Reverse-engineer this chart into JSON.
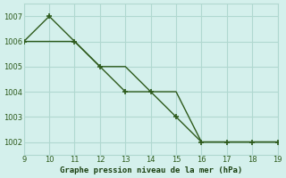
{
  "x": [
    9,
    10,
    11,
    12,
    13,
    14,
    15,
    16,
    17,
    18,
    19
  ],
  "series1": [
    1006,
    1007,
    1006,
    1005,
    1004,
    1004,
    1003,
    1002,
    1002,
    1002,
    1002
  ],
  "series2": [
    1006,
    1006,
    1006,
    1005,
    1005,
    1004,
    1004,
    1002,
    1002,
    1002,
    1002
  ],
  "line_color": "#2d5a1b",
  "bg_color": "#d4f0ec",
  "grid_color": "#b0d8d0",
  "xlabel": "Graphe pression niveau de la mer (hPa)",
  "xlabel_color": "#1a4010",
  "xlim": [
    9,
    19
  ],
  "ylim": [
    1001.5,
    1007.5
  ],
  "yticks": [
    1002,
    1003,
    1004,
    1005,
    1006,
    1007
  ],
  "xticks": [
    9,
    10,
    11,
    12,
    13,
    14,
    15,
    16,
    17,
    18,
    19
  ],
  "marker": "+",
  "linewidth": 1.0,
  "markersize": 4,
  "tick_fontsize": 6,
  "xlabel_fontsize": 6.5
}
